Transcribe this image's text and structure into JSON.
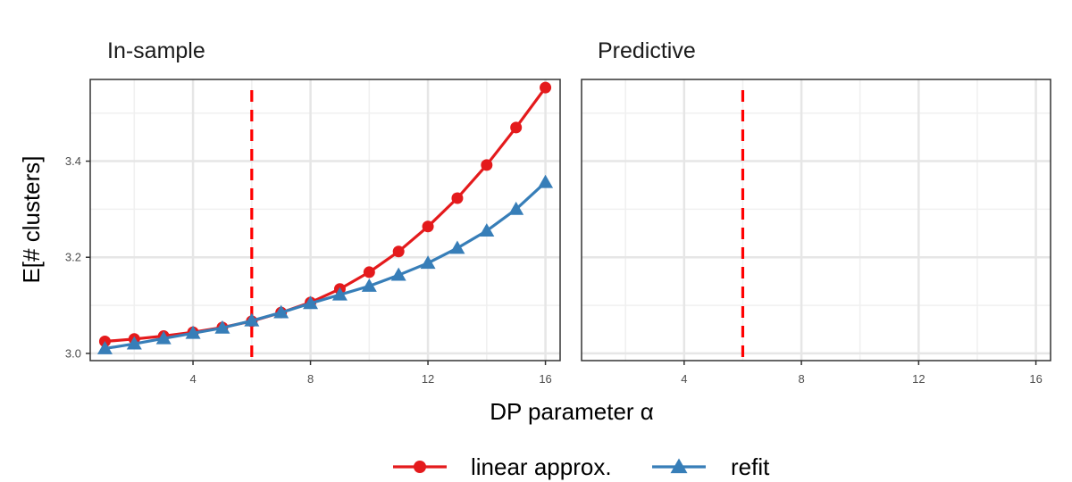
{
  "chart_data": {
    "type": "line",
    "xlabel": "DP parameter α",
    "ylabel": "E[# clusters]",
    "xlim": [
      0.5,
      16.5
    ],
    "ylim": [
      2.985,
      3.57
    ],
    "x_ticks": [
      4,
      8,
      12,
      16
    ],
    "y_ticks": [
      3.0,
      3.2,
      3.4
    ],
    "grid": true,
    "legend_position": "bottom",
    "vline": {
      "x": 6,
      "color": "#ff0000",
      "style": "dashed"
    },
    "panels": [
      {
        "title": "In-sample",
        "x": [
          1,
          2,
          3,
          4,
          5,
          6,
          7,
          8,
          9,
          10,
          11,
          12,
          13,
          14,
          15,
          16
        ],
        "series": [
          {
            "name": "linear approx.",
            "color": "#e41a1c",
            "marker": "circle",
            "values": [
              3.025,
              3.03,
              3.036,
              3.044,
              3.054,
              3.067,
              3.085,
              3.106,
              3.134,
              3.169,
              3.212,
              3.264,
              3.323,
              3.392,
              3.47,
              3.553
            ]
          },
          {
            "name": "refit",
            "color": "#377eb8",
            "marker": "triangle",
            "values": [
              3.01,
              3.02,
              3.031,
              3.042,
              3.053,
              3.068,
              3.085,
              3.104,
              3.122,
              3.14,
              3.163,
              3.188,
              3.219,
              3.255,
              3.3,
              3.356
            ]
          }
        ]
      },
      {
        "title": "Predictive",
        "x": [],
        "series": []
      }
    ]
  }
}
